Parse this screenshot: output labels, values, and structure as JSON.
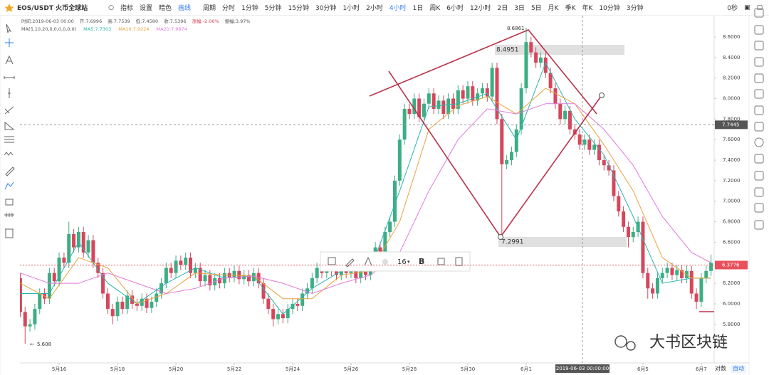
{
  "toolbar": {
    "symbol": "EOS/USDT 火币全球站",
    "items": [
      "指标",
      "设置",
      "暗色",
      "画线"
    ],
    "periods_label": "周期",
    "periods": [
      "分时",
      "1分钟",
      "5分钟",
      "15分钟",
      "30分钟",
      "1小时",
      "2小时",
      "4小时",
      "1日",
      "周K",
      "6小时",
      "12小时",
      "2日",
      "3日",
      "5日",
      "月K",
      "季K",
      "年K",
      "10分钟",
      "3分钟"
    ],
    "active_period": "4小时",
    "countdown": "0秒"
  },
  "chart_data": {
    "type": "candlestick",
    "info_line": [
      "时间:2019-06-03 00:00",
      "开:7.6996",
      "高:7.7539",
      "低:7.4580",
      "收:7.5396",
      "涨幅:-2.06%",
      "振幅:3.97%"
    ],
    "ma_label": "MA(5,10,20,0,0,0,0,0,0)",
    "up_color": "#3dae84",
    "down_color": "#d6475c",
    "categories": [
      null,
      null,
      null,
      null,
      null,
      null,
      null,
      null,
      "5月16",
      null,
      null,
      null,
      null,
      null,
      null,
      null,
      null,
      null,
      null,
      null,
      "5月18",
      null,
      null,
      null,
      null,
      null,
      null,
      null,
      null,
      null,
      null,
      null,
      "5月20",
      null,
      null,
      null,
      null,
      null,
      null,
      null,
      null,
      null,
      null,
      null,
      "5月22",
      null,
      null,
      null,
      null,
      null,
      null,
      null,
      null,
      null,
      null,
      null,
      "5月24",
      null,
      null,
      null,
      null,
      null,
      null,
      null,
      null,
      null,
      null,
      null,
      "5月26",
      null,
      null,
      null,
      null,
      null,
      null,
      null,
      null,
      null,
      null,
      null,
      "5月28",
      null,
      null,
      null,
      null,
      null,
      null,
      null,
      null,
      null,
      null,
      null,
      "5月30",
      null,
      null,
      null,
      null,
      null,
      null,
      null,
      null,
      null,
      null,
      null,
      "6月1",
      null,
      null,
      null,
      null,
      null,
      null,
      null,
      null,
      null,
      null,
      null,
      null,
      null,
      null,
      null,
      null,
      null,
      null,
      null,
      null,
      null,
      null,
      null,
      "6月5",
      null,
      null,
      null,
      null,
      null,
      null,
      null,
      null,
      null,
      null,
      null,
      "6月7",
      null,
      null
    ],
    "open": [
      6.25,
      5.92,
      5.78,
      5.8,
      5.95,
      6.1,
      6.05,
      6.3,
      6.22,
      6.45,
      6.4,
      6.68,
      6.55,
      6.7,
      6.5,
      6.62,
      6.4,
      6.3,
      6.1,
      5.95,
      5.88,
      6.02,
      5.95,
      6.08,
      6.0,
      5.98,
      6.05,
      5.96,
      6.02,
      6.1,
      6.2,
      6.35,
      6.3,
      6.42,
      6.38,
      6.45,
      6.3,
      6.35,
      6.22,
      6.28,
      6.18,
      6.25,
      6.2,
      6.3,
      6.26,
      6.32,
      6.24,
      6.28,
      6.22,
      6.3,
      6.2,
      6.05,
      5.95,
      5.85,
      5.9,
      5.86,
      5.95,
      6.0,
      5.98,
      6.1,
      6.15,
      6.25,
      6.35,
      6.3,
      6.4,
      6.32,
      6.28,
      6.35,
      6.3,
      6.38,
      6.25,
      6.32,
      6.28,
      6.4,
      6.55,
      6.5,
      6.7,
      6.8,
      7.2,
      7.6,
      7.9,
      7.85,
      8.0,
      7.82,
      7.95,
      8.05,
      7.9,
      7.98,
      7.85,
      8.0,
      7.9,
      8.08,
      8.0,
      8.12,
      7.98,
      8.05,
      8.1,
      8.02,
      8.3,
      7.8,
      7.36,
      7.4,
      7.48,
      7.7,
      8.1,
      8.55,
      8.45,
      8.35,
      8.4,
      8.25,
      8.1,
      7.95,
      7.8,
      7.88,
      7.7,
      7.65,
      7.55,
      7.6,
      7.5,
      7.55,
      7.4,
      7.35,
      7.3,
      7.05,
      6.9,
      6.75,
      6.65,
      6.7,
      6.8,
      6.3,
      6.15,
      6.1,
      6.25,
      6.3,
      6.35,
      6.28,
      6.33,
      6.25,
      6.32,
      6.1,
      6.02,
      6.25,
      6.32
    ],
    "high": [
      6.3,
      5.97,
      5.85,
      6.0,
      6.15,
      6.15,
      6.35,
      6.35,
      6.5,
      6.5,
      6.8,
      6.73,
      6.75,
      6.75,
      6.67,
      6.67,
      6.45,
      6.35,
      6.15,
      6.0,
      6.07,
      6.07,
      6.13,
      6.13,
      6.05,
      6.1,
      6.1,
      6.07,
      6.15,
      6.25,
      6.4,
      6.4,
      6.47,
      6.47,
      6.5,
      6.5,
      6.4,
      6.4,
      6.33,
      6.33,
      6.3,
      6.3,
      6.35,
      6.35,
      6.37,
      6.37,
      6.33,
      6.33,
      6.35,
      6.35,
      6.25,
      6.1,
      6.0,
      5.95,
      5.95,
      6.0,
      6.05,
      6.05,
      6.15,
      6.2,
      6.3,
      6.4,
      6.4,
      6.45,
      6.45,
      6.37,
      6.4,
      6.4,
      6.43,
      6.43,
      6.37,
      6.37,
      6.45,
      6.6,
      6.6,
      6.75,
      6.85,
      7.25,
      7.65,
      7.95,
      7.95,
      8.05,
      8.05,
      8.0,
      8.1,
      8.1,
      8.03,
      8.03,
      8.05,
      8.05,
      8.13,
      8.13,
      8.17,
      8.17,
      8.1,
      8.15,
      8.15,
      8.35,
      8.35,
      7.85,
      7.45,
      7.53,
      7.75,
      8.15,
      8.69,
      8.6,
      8.5,
      8.45,
      8.45,
      8.3,
      8.15,
      8.0,
      7.93,
      7.93,
      7.75,
      7.7,
      7.65,
      7.65,
      7.6,
      7.6,
      7.45,
      7.4,
      7.35,
      7.1,
      6.95,
      6.8,
      6.75,
      6.85,
      6.85,
      6.35,
      6.2,
      6.3,
      6.35,
      6.4,
      6.4,
      6.38,
      6.38,
      6.37,
      6.37,
      6.15,
      6.3,
      6.37,
      6.48
    ],
    "low": [
      5.87,
      5.61,
      5.73,
      5.75,
      5.9,
      6.0,
      6.0,
      6.17,
      6.17,
      6.35,
      6.35,
      6.5,
      6.5,
      6.45,
      6.45,
      6.35,
      6.25,
      6.05,
      5.9,
      5.8,
      5.83,
      5.9,
      5.9,
      5.95,
      5.93,
      5.93,
      5.91,
      5.91,
      5.97,
      6.05,
      6.15,
      6.25,
      6.25,
      6.33,
      6.33,
      6.25,
      6.25,
      6.17,
      6.17,
      6.13,
      6.13,
      6.15,
      6.15,
      6.21,
      6.21,
      6.19,
      6.19,
      6.17,
      6.17,
      6.15,
      6.0,
      5.9,
      5.78,
      5.8,
      5.81,
      5.81,
      5.9,
      5.93,
      5.93,
      6.05,
      6.1,
      6.2,
      6.25,
      6.25,
      6.27,
      6.23,
      6.23,
      6.25,
      6.25,
      6.2,
      6.2,
      6.23,
      6.23,
      6.35,
      6.45,
      6.45,
      6.65,
      6.75,
      7.15,
      7.55,
      7.8,
      7.8,
      7.77,
      7.77,
      7.9,
      7.85,
      7.85,
      7.8,
      7.8,
      7.85,
      7.85,
      7.95,
      7.95,
      7.93,
      7.93,
      8.0,
      7.97,
      7.97,
      7.75,
      6.66,
      7.31,
      7.35,
      7.43,
      7.65,
      8.05,
      8.4,
      8.3,
      8.3,
      8.2,
      8.05,
      7.9,
      7.75,
      7.75,
      7.65,
      7.6,
      7.5,
      7.5,
      7.45,
      7.45,
      7.35,
      7.3,
      7.25,
      7.0,
      6.85,
      6.7,
      6.55,
      6.6,
      6.65,
      6.25,
      6.05,
      6.05,
      6.05,
      6.2,
      6.25,
      6.23,
      6.23,
      6.2,
      6.2,
      6.05,
      5.95,
      5.97,
      6.2,
      6.27
    ],
    "close": [
      5.92,
      5.78,
      5.8,
      5.95,
      6.1,
      6.05,
      6.3,
      6.22,
      6.45,
      6.4,
      6.68,
      6.55,
      6.7,
      6.5,
      6.62,
      6.4,
      6.3,
      6.1,
      5.95,
      5.88,
      6.02,
      5.95,
      6.08,
      6.0,
      5.98,
      6.05,
      5.96,
      6.02,
      6.1,
      6.2,
      6.35,
      6.3,
      6.42,
      6.38,
      6.45,
      6.3,
      6.35,
      6.22,
      6.28,
      6.18,
      6.25,
      6.2,
      6.3,
      6.26,
      6.32,
      6.24,
      6.28,
      6.22,
      6.3,
      6.2,
      6.05,
      5.95,
      5.85,
      5.9,
      5.86,
      5.95,
      6.0,
      5.98,
      6.1,
      6.15,
      6.25,
      6.35,
      6.3,
      6.4,
      6.32,
      6.28,
      6.35,
      6.3,
      6.38,
      6.25,
      6.32,
      6.28,
      6.4,
      6.55,
      6.5,
      6.7,
      6.8,
      7.2,
      7.6,
      7.9,
      7.85,
      8.0,
      7.82,
      7.95,
      8.05,
      7.9,
      7.98,
      7.85,
      8.0,
      7.9,
      8.08,
      8.0,
      8.12,
      7.98,
      8.05,
      8.1,
      8.02,
      8.3,
      7.8,
      7.36,
      7.4,
      7.48,
      7.7,
      8.1,
      8.55,
      8.45,
      8.35,
      8.4,
      8.25,
      8.1,
      7.95,
      7.8,
      7.88,
      7.7,
      7.65,
      7.55,
      7.6,
      7.5,
      7.55,
      7.4,
      7.35,
      7.3,
      7.05,
      6.9,
      6.75,
      6.65,
      6.7,
      6.8,
      6.3,
      6.15,
      6.1,
      6.25,
      6.3,
      6.35,
      6.28,
      6.33,
      6.25,
      6.32,
      6.1,
      6.02,
      6.25,
      6.32,
      6.4
    ],
    "series": [
      {
        "name": "MA5:7.7303",
        "color": "#2bb5b0",
        "x": [
          0,
          6,
          12,
          18,
          24,
          30,
          36,
          42,
          48,
          54,
          60,
          66,
          72,
          78,
          84,
          90,
          96,
          102,
          108,
          114,
          120,
          126,
          132,
          138,
          142
        ],
        "values": [
          6.1,
          6.1,
          6.6,
          6.2,
          6.0,
          6.2,
          6.35,
          6.25,
          6.27,
          5.9,
          6.15,
          6.32,
          6.33,
          7.1,
          7.92,
          7.95,
          8.05,
          7.6,
          8.35,
          7.8,
          7.45,
          6.85,
          6.2,
          6.25,
          6.25
        ]
      },
      {
        "name": "MA10:7.9224",
        "color": "#e8a33d",
        "x": [
          0,
          6,
          12,
          18,
          24,
          30,
          36,
          42,
          48,
          54,
          60,
          66,
          72,
          78,
          84,
          90,
          96,
          102,
          108,
          114,
          120,
          126,
          132,
          138,
          142
        ],
        "values": [
          6.2,
          6.05,
          6.45,
          6.35,
          6.0,
          6.1,
          6.3,
          6.28,
          6.27,
          6.05,
          6.05,
          6.28,
          6.32,
          6.8,
          7.7,
          7.93,
          8.02,
          7.85,
          8.1,
          7.95,
          7.55,
          7.1,
          6.45,
          6.25,
          6.25
        ]
      },
      {
        "name": "MA20:7.9874",
        "color": "#e07ad8",
        "x": [
          0,
          6,
          12,
          18,
          24,
          30,
          36,
          42,
          48,
          54,
          60,
          66,
          72,
          78,
          84,
          90,
          96,
          102,
          108,
          114,
          120,
          126,
          132,
          138,
          142
        ],
        "values": [
          6.3,
          6.2,
          6.2,
          6.3,
          6.2,
          6.1,
          6.15,
          6.25,
          6.27,
          6.2,
          6.1,
          6.2,
          6.28,
          6.5,
          7.1,
          7.6,
          7.9,
          7.85,
          7.95,
          7.95,
          7.7,
          7.35,
          6.85,
          6.5,
          6.4
        ]
      }
    ],
    "ylim": [
      5.424,
      8.808
    ],
    "yticks": [
      {
        "value": 5.8,
        "label": "5.8000"
      },
      {
        "value": 6,
        "label": "6.0000"
      },
      {
        "value": 6.2,
        "label": "6.2000"
      },
      {
        "value": 6.6,
        "label": "6.6000"
      },
      {
        "value": 6.8,
        "label": "6.8000"
      },
      {
        "value": 7,
        "label": "7.0000"
      },
      {
        "value": 7.2,
        "label": "7.2000"
      },
      {
        "value": 7.4,
        "label": "7.4000"
      },
      {
        "value": 7.6,
        "label": "7.6000"
      },
      {
        "value": 7.8,
        "label": "7.8000"
      },
      {
        "value": 8,
        "label": "8.0000"
      },
      {
        "value": 8.2,
        "label": "8.2000"
      },
      {
        "value": 8.4,
        "label": "8.4000"
      },
      {
        "value": 8.6,
        "label": "8.6000"
      }
    ],
    "grid": false,
    "crosshair_price": 7.7445,
    "last_price": 6.3776,
    "crosshair_time": "2019-06-03 00:00:00",
    "annotations": [
      "8.6861",
      "8.4951",
      "7.2991",
      "5.608"
    ],
    "axis_controls": [
      "对数",
      "自动"
    ],
    "float_toolbar": {
      "size": "16",
      "bold": "B"
    },
    "watermark": "大书区块链"
  }
}
